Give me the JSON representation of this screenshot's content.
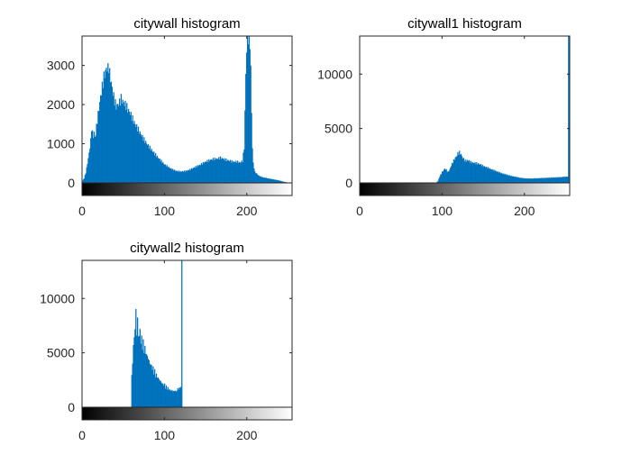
{
  "figure": {
    "background": "#ffffff",
    "bar_color": "#0072BD",
    "axes_color": "#262626"
  },
  "chart_data": [
    {
      "type": "bar",
      "title": "citywall histogram",
      "xlabel": "",
      "ylabel": "",
      "xlim": [
        0,
        255
      ],
      "ylim": [
        0,
        3750
      ],
      "xticks": [
        0,
        100,
        200
      ],
      "yticks": [
        0,
        1000,
        2000,
        3000
      ],
      "colorbar": "grayscale",
      "grid": false,
      "histogram_profile": [
        [
          0,
          50
        ],
        [
          2,
          120
        ],
        [
          4,
          260
        ],
        [
          6,
          500
        ],
        [
          8,
          760
        ],
        [
          10,
          1080
        ],
        [
          11,
          1400
        ],
        [
          12,
          1280
        ],
        [
          13,
          1180
        ],
        [
          14,
          1300
        ],
        [
          15,
          1150
        ],
        [
          16,
          1260
        ],
        [
          18,
          1600
        ],
        [
          20,
          1900
        ],
        [
          22,
          2200
        ],
        [
          24,
          2450
        ],
        [
          26,
          2700
        ],
        [
          28,
          2850
        ],
        [
          30,
          2950
        ],
        [
          31,
          2900
        ],
        [
          32,
          2980
        ],
        [
          33,
          2780
        ],
        [
          35,
          2550
        ],
        [
          37,
          2300
        ],
        [
          39,
          2100
        ],
        [
          41,
          1950
        ],
        [
          43,
          2000
        ],
        [
          45,
          2050
        ],
        [
          47,
          2150
        ],
        [
          49,
          2080
        ],
        [
          51,
          2020
        ],
        [
          53,
          1980
        ],
        [
          55,
          1880
        ],
        [
          58,
          1780
        ],
        [
          62,
          1580
        ],
        [
          66,
          1430
        ],
        [
          70,
          1280
        ],
        [
          75,
          1100
        ],
        [
          80,
          950
        ],
        [
          85,
          820
        ],
        [
          90,
          690
        ],
        [
          95,
          580
        ],
        [
          100,
          470
        ],
        [
          105,
          400
        ],
        [
          110,
          340
        ],
        [
          115,
          300
        ],
        [
          120,
          290
        ],
        [
          125,
          300
        ],
        [
          130,
          330
        ],
        [
          135,
          380
        ],
        [
          140,
          430
        ],
        [
          145,
          480
        ],
        [
          150,
          540
        ],
        [
          155,
          580
        ],
        [
          160,
          610
        ],
        [
          165,
          620
        ],
        [
          168,
          640
        ],
        [
          172,
          610
        ],
        [
          176,
          580
        ],
        [
          180,
          560
        ],
        [
          184,
          540
        ],
        [
          188,
          540
        ],
        [
          192,
          520
        ],
        [
          195,
          560
        ],
        [
          197,
          900
        ],
        [
          198,
          1800
        ],
        [
          199,
          2800
        ],
        [
          200,
          3400
        ],
        [
          201,
          3750
        ],
        [
          202,
          3750
        ],
        [
          203,
          3750
        ],
        [
          204,
          3600
        ],
        [
          205,
          2900
        ],
        [
          206,
          1800
        ],
        [
          207,
          900
        ],
        [
          208,
          500
        ],
        [
          210,
          280
        ],
        [
          215,
          180
        ],
        [
          220,
          140
        ],
        [
          225,
          120
        ],
        [
          230,
          100
        ],
        [
          235,
          80
        ],
        [
          240,
          60
        ],
        [
          245,
          30
        ],
        [
          250,
          10
        ],
        [
          255,
          0
        ]
      ]
    },
    {
      "type": "bar",
      "title": "citywall1 histogram",
      "xlabel": "",
      "ylabel": "",
      "xlim": [
        0,
        255
      ],
      "ylim": [
        0,
        13500
      ],
      "xticks": [
        0,
        100,
        200
      ],
      "yticks": [
        0,
        5000,
        10000
      ],
      "colorbar": "grayscale",
      "grid": false,
      "histogram_profile": [
        [
          0,
          0
        ],
        [
          93,
          0
        ],
        [
          95,
          200
        ],
        [
          97,
          600
        ],
        [
          100,
          1000
        ],
        [
          103,
          1300
        ],
        [
          105,
          1200
        ],
        [
          107,
          1000
        ],
        [
          109,
          1200
        ],
        [
          111,
          1600
        ],
        [
          113,
          1900
        ],
        [
          115,
          2200
        ],
        [
          117,
          2400
        ],
        [
          119,
          2700
        ],
        [
          121,
          2800
        ],
        [
          123,
          2600
        ],
        [
          125,
          2300
        ],
        [
          127,
          2100
        ],
        [
          129,
          2000
        ],
        [
          131,
          2100
        ],
        [
          133,
          2000
        ],
        [
          135,
          1900
        ],
        [
          138,
          1850
        ],
        [
          142,
          1800
        ],
        [
          146,
          1700
        ],
        [
          150,
          1550
        ],
        [
          155,
          1400
        ],
        [
          160,
          1250
        ],
        [
          165,
          1100
        ],
        [
          170,
          950
        ],
        [
          175,
          830
        ],
        [
          180,
          720
        ],
        [
          185,
          620
        ],
        [
          190,
          540
        ],
        [
          195,
          470
        ],
        [
          200,
          420
        ],
        [
          205,
          400
        ],
        [
          210,
          400
        ],
        [
          215,
          420
        ],
        [
          220,
          440
        ],
        [
          225,
          450
        ],
        [
          230,
          470
        ],
        [
          235,
          490
        ],
        [
          240,
          510
        ],
        [
          245,
          530
        ],
        [
          250,
          560
        ],
        [
          253,
          580
        ],
        [
          254,
          13500
        ],
        [
          255,
          13500
        ]
      ]
    },
    {
      "type": "bar",
      "title": "citywall2 histogram",
      "xlabel": "",
      "ylabel": "",
      "xlim": [
        0,
        255
      ],
      "ylim": [
        0,
        13500
      ],
      "xticks": [
        0,
        100,
        200
      ],
      "yticks": [
        0,
        5000,
        10000
      ],
      "colorbar": "grayscale",
      "grid": false,
      "histogram_profile": [
        [
          0,
          0
        ],
        [
          59,
          0
        ],
        [
          60,
          2800
        ],
        [
          61,
          4200
        ],
        [
          62,
          5600
        ],
        [
          63,
          6400
        ],
        [
          64,
          7400
        ],
        [
          65,
          8600
        ],
        [
          66,
          7000
        ],
        [
          67,
          7800
        ],
        [
          68,
          6800
        ],
        [
          69,
          6400
        ],
        [
          70,
          7200
        ],
        [
          71,
          6000
        ],
        [
          72,
          6300
        ],
        [
          73,
          5600
        ],
        [
          74,
          5900
        ],
        [
          75,
          5200
        ],
        [
          76,
          5500
        ],
        [
          77,
          4900
        ],
        [
          78,
          5000
        ],
        [
          79,
          4500
        ],
        [
          80,
          4700
        ],
        [
          81,
          4100
        ],
        [
          82,
          4200
        ],
        [
          83,
          3800
        ],
        [
          84,
          3900
        ],
        [
          85,
          3500
        ],
        [
          86,
          3600
        ],
        [
          87,
          3200
        ],
        [
          88,
          3300
        ],
        [
          89,
          2900
        ],
        [
          90,
          3000
        ],
        [
          91,
          2700
        ],
        [
          92,
          2800
        ],
        [
          93,
          2500
        ],
        [
          94,
          2600
        ],
        [
          95,
          2300
        ],
        [
          96,
          2400
        ],
        [
          97,
          2100
        ],
        [
          98,
          2200
        ],
        [
          99,
          2000
        ],
        [
          100,
          2100
        ],
        [
          101,
          1800
        ],
        [
          102,
          1900
        ],
        [
          103,
          1700
        ],
        [
          104,
          1800
        ],
        [
          105,
          1600
        ],
        [
          106,
          1700
        ],
        [
          107,
          1500
        ],
        [
          108,
          1600
        ],
        [
          109,
          1500
        ],
        [
          110,
          1550
        ],
        [
          111,
          1450
        ],
        [
          112,
          1500
        ],
        [
          113,
          1550
        ],
        [
          114,
          1400
        ],
        [
          115,
          1600
        ],
        [
          116,
          1650
        ],
        [
          117,
          1700
        ],
        [
          118,
          1750
        ],
        [
          119,
          1800
        ],
        [
          120,
          1900
        ],
        [
          121,
          13500
        ],
        [
          122,
          0
        ],
        [
          255,
          0
        ]
      ]
    }
  ]
}
